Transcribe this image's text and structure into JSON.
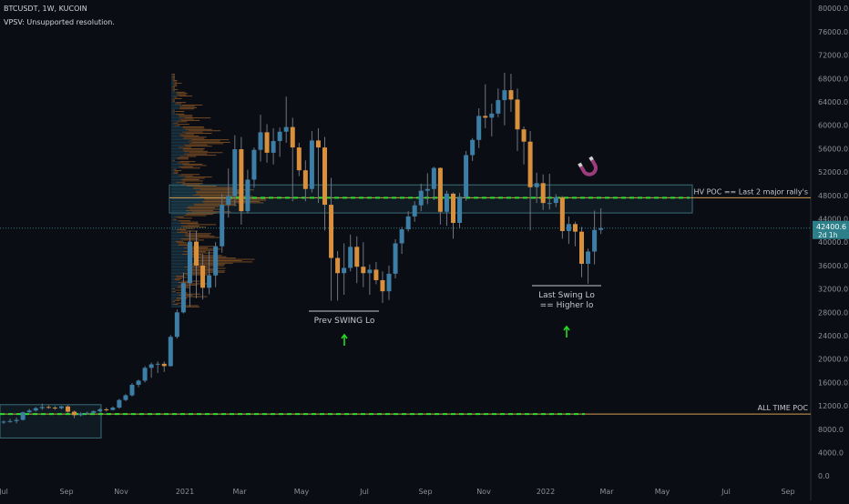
{
  "header": {
    "symbol_line": "BTCUSDT, 1W, KUCOIN",
    "indicator_line": "VPSV: Unsupported resolution."
  },
  "colors": {
    "background": "#0b0d14",
    "up_candle": "#3c7ea6",
    "down_candle": "#d9903d",
    "volume_profile": "#c77a30",
    "level_line": "#d4a050",
    "dashed_level": "#2ee02e",
    "zone_border": "#3b6e79",
    "arrow": "#22dd22",
    "magnet_icon": "#9c3c7c",
    "price_tag_bg": "#2d7f8a",
    "axis_text": "#8c8f99",
    "annotation_text": "#c7c9cf"
  },
  "icons": [
    "magnet-icon",
    "up-arrow-icon"
  ],
  "chart_data": {
    "type": "candlestick",
    "title": "BTCUSDT, 1W, KUCOIN",
    "ylim": [
      0,
      80000
    ],
    "y_ticks": [
      "0.0",
      "4000.0",
      "8000.0",
      "12000.0",
      "16000.0",
      "20000.0",
      "24000.0",
      "28000.0",
      "32000.0",
      "36000.0",
      "40000.0",
      "44000.0",
      "48000.0",
      "52000.0",
      "56000.0",
      "60000.0",
      "64000.0",
      "68000.0",
      "72000.0",
      "76000.0",
      "80000.0"
    ],
    "x_ticks": [
      "Jul",
      "Sep",
      "Nov",
      "2021",
      "Mar",
      "May",
      "Jul",
      "Sep",
      "Nov",
      "2022",
      "Mar",
      "May",
      "Jul",
      "Sep"
    ],
    "last_price": "42400.6",
    "countdown": "2d 1h",
    "candles": [
      {
        "o": 9200,
        "h": 9500,
        "l": 8900,
        "c": 9300
      },
      {
        "o": 9300,
        "h": 9800,
        "l": 9100,
        "c": 9400
      },
      {
        "o": 9400,
        "h": 10000,
        "l": 9000,
        "c": 9600
      },
      {
        "o": 9600,
        "h": 11000,
        "l": 9500,
        "c": 10900
      },
      {
        "o": 10900,
        "h": 11500,
        "l": 10800,
        "c": 11200
      },
      {
        "o": 11200,
        "h": 11800,
        "l": 11000,
        "c": 11600
      },
      {
        "o": 11600,
        "h": 12400,
        "l": 11300,
        "c": 11800
      },
      {
        "o": 11800,
        "h": 12100,
        "l": 11500,
        "c": 11700
      },
      {
        "o": 11700,
        "h": 12000,
        "l": 11300,
        "c": 11600
      },
      {
        "o": 11600,
        "h": 12000,
        "l": 11400,
        "c": 11900
      },
      {
        "o": 11900,
        "h": 12100,
        "l": 10800,
        "c": 11000
      },
      {
        "o": 11000,
        "h": 11200,
        "l": 9900,
        "c": 10400
      },
      {
        "o": 10400,
        "h": 10900,
        "l": 10200,
        "c": 10700
      },
      {
        "o": 10700,
        "h": 11000,
        "l": 10500,
        "c": 10800
      },
      {
        "o": 10800,
        "h": 11200,
        "l": 10600,
        "c": 11100
      },
      {
        "o": 11100,
        "h": 11600,
        "l": 10900,
        "c": 11400
      },
      {
        "o": 11400,
        "h": 11700,
        "l": 11000,
        "c": 11300
      },
      {
        "o": 11300,
        "h": 11900,
        "l": 11200,
        "c": 11700
      },
      {
        "o": 11700,
        "h": 13200,
        "l": 11500,
        "c": 13000
      },
      {
        "o": 13000,
        "h": 14000,
        "l": 12800,
        "c": 13800
      },
      {
        "o": 13800,
        "h": 15900,
        "l": 13600,
        "c": 15600
      },
      {
        "o": 15600,
        "h": 16500,
        "l": 15200,
        "c": 16300
      },
      {
        "o": 16300,
        "h": 18800,
        "l": 16000,
        "c": 18500
      },
      {
        "o": 18500,
        "h": 19400,
        "l": 16800,
        "c": 19100
      },
      {
        "o": 19100,
        "h": 19600,
        "l": 17600,
        "c": 19200
      },
      {
        "o": 19200,
        "h": 19600,
        "l": 17800,
        "c": 18800
      },
      {
        "o": 18800,
        "h": 24100,
        "l": 18700,
        "c": 23800
      },
      {
        "o": 23800,
        "h": 28500,
        "l": 23500,
        "c": 28000
      },
      {
        "o": 28000,
        "h": 34800,
        "l": 27800,
        "c": 33000
      },
      {
        "o": 33000,
        "h": 42000,
        "l": 29000,
        "c": 40100
      },
      {
        "o": 40100,
        "h": 41900,
        "l": 30400,
        "c": 36000
      },
      {
        "o": 36000,
        "h": 38000,
        "l": 30200,
        "c": 32200
      },
      {
        "o": 32200,
        "h": 38500,
        "l": 31100,
        "c": 34300
      },
      {
        "o": 34300,
        "h": 40000,
        "l": 32300,
        "c": 39300
      },
      {
        "o": 39300,
        "h": 48200,
        "l": 38200,
        "c": 46400
      },
      {
        "o": 46400,
        "h": 52600,
        "l": 44200,
        "c": 47900
      },
      {
        "o": 47900,
        "h": 58300,
        "l": 46200,
        "c": 55900
      },
      {
        "o": 55900,
        "h": 58000,
        "l": 43000,
        "c": 45300
      },
      {
        "o": 45300,
        "h": 52400,
        "l": 44900,
        "c": 50700
      },
      {
        "o": 50700,
        "h": 56200,
        "l": 49300,
        "c": 55800
      },
      {
        "o": 55800,
        "h": 61800,
        "l": 53800,
        "c": 58800
      },
      {
        "o": 58800,
        "h": 60200,
        "l": 53600,
        "c": 55300
      },
      {
        "o": 55300,
        "h": 59500,
        "l": 53300,
        "c": 57300
      },
      {
        "o": 57300,
        "h": 59600,
        "l": 54600,
        "c": 58900
      },
      {
        "o": 58900,
        "h": 64900,
        "l": 57000,
        "c": 59700
      },
      {
        "o": 59700,
        "h": 61300,
        "l": 47000,
        "c": 56200
      },
      {
        "o": 56200,
        "h": 57000,
        "l": 51300,
        "c": 52300
      },
      {
        "o": 52300,
        "h": 54000,
        "l": 47000,
        "c": 49100
      },
      {
        "o": 49100,
        "h": 59000,
        "l": 48500,
        "c": 57400
      },
      {
        "o": 57400,
        "h": 59500,
        "l": 46700,
        "c": 56200
      },
      {
        "o": 56200,
        "h": 58000,
        "l": 42000,
        "c": 46400
      },
      {
        "o": 46400,
        "h": 51000,
        "l": 30000,
        "c": 37300
      },
      {
        "o": 37300,
        "h": 38500,
        "l": 30000,
        "c": 34700
      },
      {
        "o": 34700,
        "h": 39800,
        "l": 31000,
        "c": 35600
      },
      {
        "o": 35600,
        "h": 41300,
        "l": 35000,
        "c": 39200
      },
      {
        "o": 39200,
        "h": 41000,
        "l": 33000,
        "c": 35800
      },
      {
        "o": 35800,
        "h": 40000,
        "l": 32300,
        "c": 34700
      },
      {
        "o": 34700,
        "h": 36200,
        "l": 31000,
        "c": 35300
      },
      {
        "o": 35300,
        "h": 36600,
        "l": 32800,
        "c": 33500
      },
      {
        "o": 33500,
        "h": 35000,
        "l": 29600,
        "c": 31600
      },
      {
        "o": 31600,
        "h": 36000,
        "l": 30100,
        "c": 34600
      },
      {
        "o": 34600,
        "h": 40500,
        "l": 33800,
        "c": 39800
      },
      {
        "o": 39800,
        "h": 42600,
        "l": 38000,
        "c": 42200
      },
      {
        "o": 42200,
        "h": 45300,
        "l": 41800,
        "c": 44400
      },
      {
        "o": 44400,
        "h": 47000,
        "l": 43500,
        "c": 46300
      },
      {
        "o": 46300,
        "h": 50000,
        "l": 45300,
        "c": 48800
      },
      {
        "o": 48800,
        "h": 51800,
        "l": 46500,
        "c": 49100
      },
      {
        "o": 49100,
        "h": 52900,
        "l": 47200,
        "c": 52700
      },
      {
        "o": 52700,
        "h": 52800,
        "l": 43000,
        "c": 45200
      },
      {
        "o": 45200,
        "h": 48800,
        "l": 42800,
        "c": 48300
      },
      {
        "o": 48300,
        "h": 48500,
        "l": 40600,
        "c": 43300
      },
      {
        "o": 43300,
        "h": 48400,
        "l": 42400,
        "c": 47700
      },
      {
        "o": 47700,
        "h": 55600,
        "l": 47100,
        "c": 54900
      },
      {
        "o": 54900,
        "h": 57800,
        "l": 53900,
        "c": 57500
      },
      {
        "o": 57500,
        "h": 62900,
        "l": 56100,
        "c": 61600
      },
      {
        "o": 61600,
        "h": 67000,
        "l": 59500,
        "c": 61300
      },
      {
        "o": 61300,
        "h": 63700,
        "l": 58100,
        "c": 62000
      },
      {
        "o": 62000,
        "h": 66300,
        "l": 61400,
        "c": 64300
      },
      {
        "o": 64300,
        "h": 69000,
        "l": 60000,
        "c": 66000
      },
      {
        "o": 66000,
        "h": 68800,
        "l": 62300,
        "c": 64400
      },
      {
        "o": 64400,
        "h": 66300,
        "l": 55600,
        "c": 59300
      },
      {
        "o": 59300,
        "h": 59800,
        "l": 53300,
        "c": 57200
      },
      {
        "o": 57200,
        "h": 59000,
        "l": 42000,
        "c": 49400
      },
      {
        "o": 49400,
        "h": 51900,
        "l": 46700,
        "c": 50100
      },
      {
        "o": 50100,
        "h": 51600,
        "l": 45500,
        "c": 46700
      },
      {
        "o": 46700,
        "h": 51700,
        "l": 45600,
        "c": 46700
      },
      {
        "o": 46700,
        "h": 48200,
        "l": 46000,
        "c": 47700
      },
      {
        "o": 47700,
        "h": 47900,
        "l": 40600,
        "c": 41900
      },
      {
        "o": 41900,
        "h": 44400,
        "l": 39700,
        "c": 43100
      },
      {
        "o": 43100,
        "h": 43500,
        "l": 39300,
        "c": 41800
      },
      {
        "o": 41800,
        "h": 42600,
        "l": 34000,
        "c": 36300
      },
      {
        "o": 36300,
        "h": 38900,
        "l": 32900,
        "c": 38400
      },
      {
        "o": 38400,
        "h": 45400,
        "l": 36200,
        "c": 42100
      },
      {
        "o": 42100,
        "h": 45800,
        "l": 41400,
        "c": 42400
      }
    ],
    "horizontal_levels": [
      {
        "label": "HV POC == Last 2 major rally's",
        "value": 47600,
        "style": "solid"
      },
      {
        "value": 47600,
        "style": "dashed"
      },
      {
        "label": "ALL TIME POC",
        "value": 10600,
        "style": "solid"
      },
      {
        "value": 10600,
        "style": "dashed"
      },
      {
        "value": 42400,
        "style": "dotted"
      }
    ],
    "annotations": [
      {
        "text": "Prev SWING Lo"
      },
      {
        "text": "Last Swing Lo"
      },
      {
        "text": "== Higher lo"
      }
    ]
  }
}
